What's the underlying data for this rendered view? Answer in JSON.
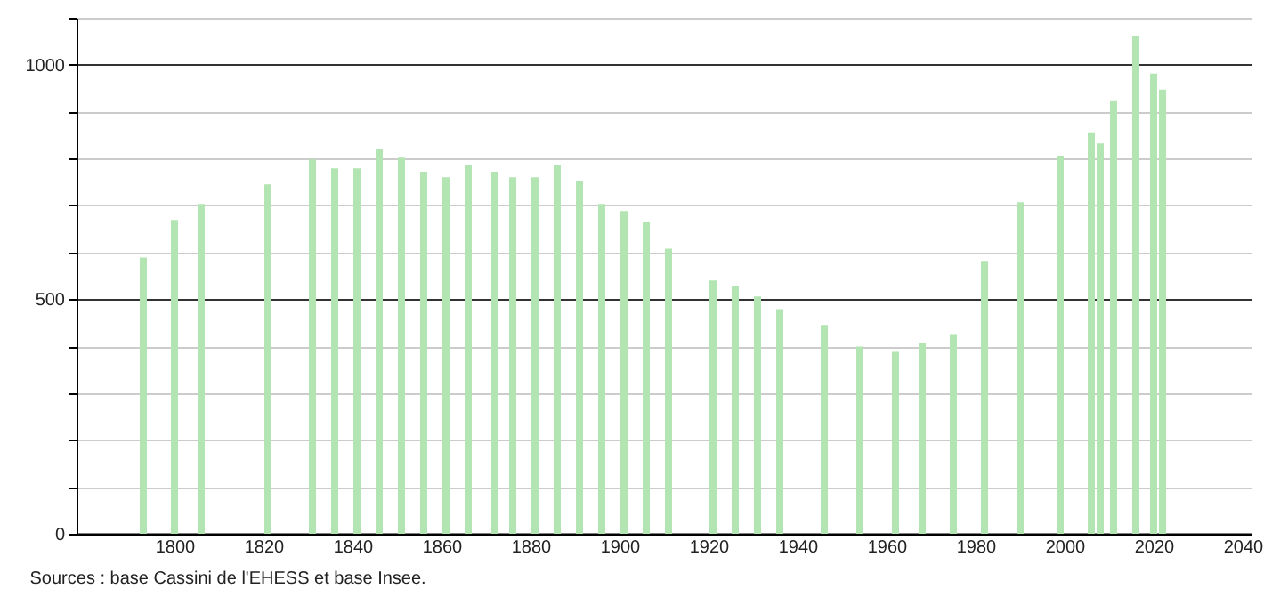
{
  "chart_data": {
    "type": "bar",
    "annotations": [
      "Sources : base Cassini de l'EHESS et base Insee."
    ],
    "x": [
      1793,
      1800,
      1806,
      1821,
      1831,
      1836,
      1841,
      1846,
      1851,
      1856,
      1861,
      1866,
      1872,
      1876,
      1881,
      1886,
      1891,
      1896,
      1901,
      1906,
      1911,
      1921,
      1926,
      1931,
      1936,
      1946,
      1954,
      1962,
      1968,
      1975,
      1982,
      1990,
      1999,
      2006,
      2008,
      2011,
      2016,
      2020,
      2022
    ],
    "values": [
      589,
      669,
      703,
      745,
      798,
      779,
      779,
      821,
      802,
      772,
      760,
      787,
      772,
      760,
      760,
      787,
      753,
      703,
      688,
      665,
      608,
      540,
      529,
      506,
      479,
      445,
      399,
      388,
      407,
      426,
      582,
      707,
      806,
      856,
      832,
      924,
      1061,
      981,
      947
    ],
    "color": "#b2e5b2",
    "xlim": [
      1778,
      2042
    ],
    "xticks": [
      1800,
      1820,
      1840,
      1860,
      1880,
      1900,
      1920,
      1940,
      1960,
      1980,
      2000,
      2020,
      2040
    ],
    "ylim": [
      0,
      1100
    ],
    "yticks": [
      0,
      {
        "value": 100,
        "label": null
      },
      {
        "value": 200,
        "label": null
      },
      {
        "value": 300,
        "label": null
      },
      {
        "value": 400,
        "label": null
      },
      500,
      {
        "value": 600,
        "label": null
      },
      {
        "value": 700,
        "label": null
      },
      {
        "value": 800,
        "label": null
      },
      {
        "value": 900,
        "label": null
      },
      1000,
      {
        "value": 1100,
        "label": null
      }
    ],
    "grid": "y"
  }
}
